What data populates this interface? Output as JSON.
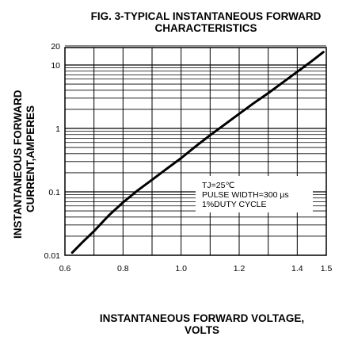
{
  "chart_data": {
    "type": "line",
    "title": "FIG. 3-TYPICAL INSTANTANEOUS FORWARD",
    "subtitle": "CHARACTERISTICS",
    "ylabel_line1": "INSTANTANEOUS FORWARD",
    "ylabel_line2": "CURRENT,AMPERES",
    "xlabel_line1": "INSTANTANEOUS FORWARD VOLTAGE,",
    "xlabel_line2": "VOLTS",
    "xlim": [
      0.6,
      1.5
    ],
    "ylim": [
      0.01,
      20
    ],
    "yscale": "log",
    "grid": true,
    "x_ticks": [
      {
        "value": 0.6,
        "label": "0.6"
      },
      {
        "value": 0.8,
        "label": "0.8"
      },
      {
        "value": 1.0,
        "label": "1.0"
      },
      {
        "value": 1.2,
        "label": "1.2"
      },
      {
        "value": 1.4,
        "label": "1.4"
      },
      {
        "value": 1.5,
        "label": "1.5"
      }
    ],
    "y_ticks": [
      {
        "value": 0.01,
        "label": "0.01"
      },
      {
        "value": 0.1,
        "label": "0.1"
      },
      {
        "value": 1,
        "label": "1"
      },
      {
        "value": 10,
        "label": "10"
      },
      {
        "value": 20,
        "label": "20"
      }
    ],
    "annotation": [
      "TJ=25℃",
      "PULSE WIDTH=300 μs",
      "1%DUTY CYCLE"
    ],
    "series": [
      {
        "x": [
          0.625,
          0.66,
          0.7,
          0.75,
          0.8,
          0.85,
          0.9,
          0.95,
          1.0,
          1.05,
          1.1,
          1.15,
          1.2,
          1.25,
          1.3,
          1.35,
          1.4,
          1.45,
          1.49
        ],
        "y": [
          0.011,
          0.016,
          0.024,
          0.042,
          0.068,
          0.105,
          0.155,
          0.23,
          0.34,
          0.52,
          0.78,
          1.15,
          1.7,
          2.5,
          3.6,
          5.3,
          7.8,
          11.5,
          16
        ]
      }
    ]
  }
}
